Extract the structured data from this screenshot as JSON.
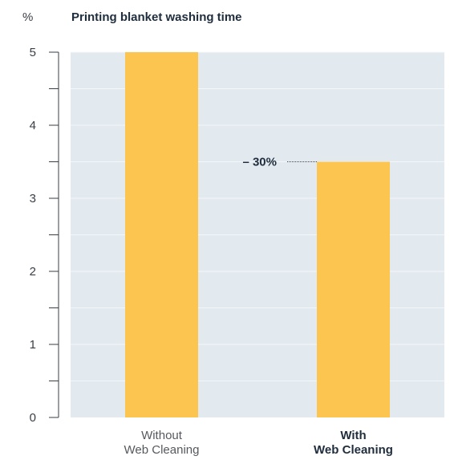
{
  "chart_data": {
    "type": "bar",
    "title": "Printing blanket washing time",
    "ylabel": "%",
    "ylim": [
      0,
      5
    ],
    "yticks": [
      0,
      1,
      2,
      3,
      4,
      5
    ],
    "categories": [
      [
        "Without",
        "Web Cleaning"
      ],
      [
        "With",
        "Web Cleaning"
      ]
    ],
    "category_bold": [
      false,
      true
    ],
    "values": [
      5,
      3.5
    ],
    "annotation": {
      "text": "– 30%",
      "category_index": 1
    },
    "bar_color": "#fbc54f",
    "plot_background": "#e3eaef",
    "grid": true,
    "grid_color": "#f4f7f9"
  }
}
